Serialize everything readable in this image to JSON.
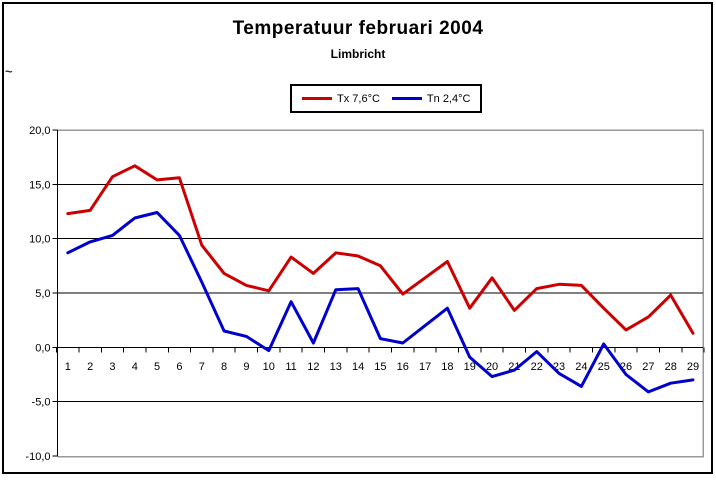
{
  "title": "Temperatuur februari 2004",
  "subtitle": "Limbricht",
  "y_axis_mark": "~",
  "legend": {
    "items": [
      {
        "label": "Tx 7,6°C",
        "color": "#cc0000"
      },
      {
        "label": "Tn 2,4°C",
        "color": "#0000cc"
      }
    ]
  },
  "chart_data": {
    "type": "line",
    "title": "Temperatuur februari 2004",
    "subtitle": "Limbricht",
    "xlabel": "",
    "ylabel": "",
    "ylim": [
      -10,
      20
    ],
    "grid": true,
    "legend_position": "top-center",
    "x": [
      1,
      2,
      3,
      4,
      5,
      6,
      7,
      8,
      9,
      10,
      11,
      12,
      13,
      14,
      15,
      16,
      17,
      18,
      19,
      20,
      21,
      22,
      23,
      24,
      25,
      26,
      27,
      28,
      29
    ],
    "y_ticks": [
      {
        "value": 20,
        "label": "20,0"
      },
      {
        "value": 15,
        "label": "15,0"
      },
      {
        "value": 10,
        "label": "10,0"
      },
      {
        "value": 5,
        "label": "5,0"
      },
      {
        "value": 0,
        "label": "0,0"
      },
      {
        "value": -5,
        "label": "-5,0"
      },
      {
        "value": -10,
        "label": "-10,0"
      }
    ],
    "series": [
      {
        "name": "Tx 7,6°C",
        "id": "tx-line",
        "color": "#cc0000",
        "mean": "7,6°C",
        "values": [
          12.3,
          12.6,
          15.7,
          16.7,
          15.4,
          15.6,
          9.4,
          6.8,
          5.7,
          5.2,
          8.3,
          6.8,
          8.7,
          8.4,
          7.5,
          4.9,
          6.4,
          7.9,
          3.6,
          6.4,
          3.4,
          5.4,
          5.8,
          5.7,
          3.6,
          1.6,
          2.8,
          4.8,
          1.3
        ]
      },
      {
        "name": "Tn 2,4°C",
        "id": "tn-line",
        "color": "#0000cc",
        "mean": "2,4°C",
        "values": [
          8.7,
          9.7,
          10.3,
          11.9,
          12.4,
          10.3,
          6.0,
          1.5,
          1.0,
          -0.3,
          4.2,
          0.4,
          5.3,
          5.4,
          0.8,
          0.4,
          2.0,
          3.6,
          -0.9,
          -2.7,
          -2.1,
          -0.4,
          -2.4,
          -3.6,
          0.3,
          -2.5,
          -4.1,
          -3.3,
          -3.0
        ]
      }
    ],
    "axis_colors": {
      "gridline": "#000000",
      "plot_border": "#999999",
      "axis": "#000000"
    }
  }
}
